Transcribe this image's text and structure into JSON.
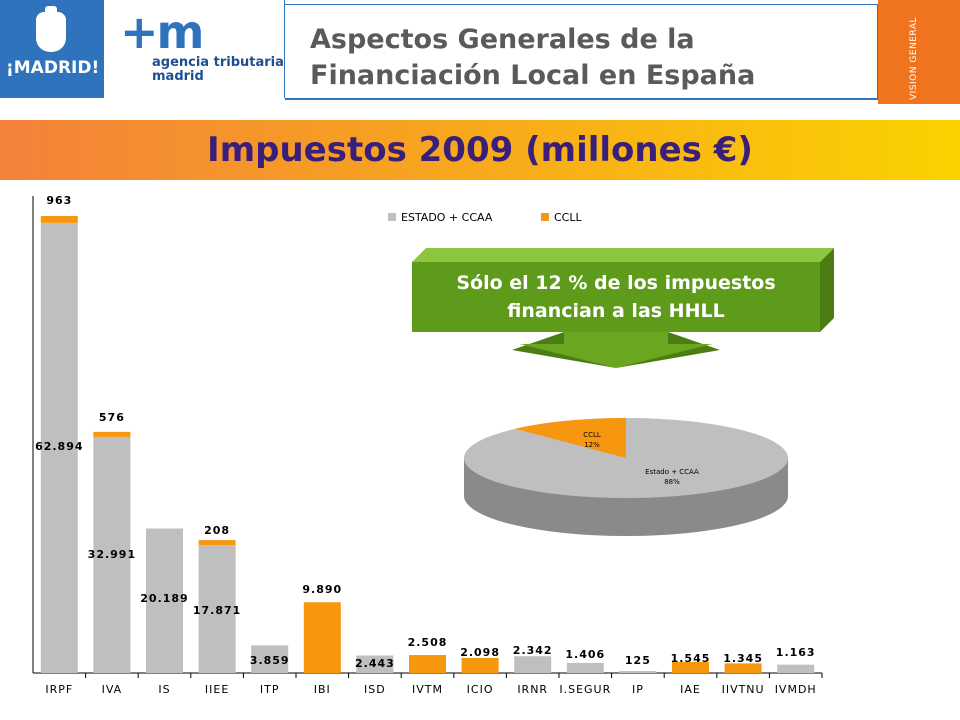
{
  "logos": {
    "madrid": "¡MADRID!",
    "agencia_mark": "+m",
    "agencia_line1": "agencia tributaria",
    "agencia_line2": "madrid"
  },
  "header": {
    "title_line1": "Aspectos Generales de la",
    "title_line2": "Financiación Local en España",
    "section_tab": "VISION GENERAL"
  },
  "banner": {
    "title": "Impuestos 2009 (millones €)"
  },
  "callout": {
    "line1": "Sólo el 12 % de los impuestos",
    "line2": "financian a las HHLL"
  },
  "colors": {
    "estado": "#bfbfbf",
    "ccll": "#f7960f",
    "banner_title": "#3a1f7a",
    "callout": "#5f9b1a",
    "accent_blue": "#2f73bd"
  },
  "chart_data": [
    {
      "type": "bar",
      "stacked": true,
      "categories": [
        "IRPF",
        "IVA",
        "IS",
        "IIEE",
        "ITP",
        "IBI",
        "ISD",
        "IVTM",
        "ICIO",
        "IRNR",
        "I.SEGUR",
        "IP",
        "IAE",
        "IIVTNU",
        "IVMDH"
      ],
      "series": [
        {
          "name": "ESTADO + CCAA",
          "values": [
            62894,
            32991,
            20189,
            17871,
            3859,
            0,
            2443,
            0,
            0,
            2342,
            1406,
            125,
            0,
            0,
            1163
          ]
        },
        {
          "name": "CCLL",
          "values": [
            963,
            576,
            0,
            208,
            0,
            9890,
            0,
            2508,
            2098,
            0,
            0,
            0,
            1545,
            1345,
            0
          ]
        }
      ],
      "data_labels": [
        "963",
        "62.894",
        "576",
        "32.991",
        "20.189",
        "208",
        "17.871",
        "3.859",
        "9.890",
        "2.443",
        "2.508",
        "2.098",
        "2.342",
        "1.406",
        "125",
        "1.545",
        "1.345",
        "1.163"
      ],
      "legend_position": "top-right",
      "ylim": [
        0,
        65000
      ],
      "grid": false
    },
    {
      "type": "pie",
      "slices": [
        {
          "name": "Estado + CCAA",
          "value": 88,
          "label": "88%"
        },
        {
          "name": "CCLL",
          "value": 12,
          "label": "12%"
        }
      ]
    }
  ]
}
